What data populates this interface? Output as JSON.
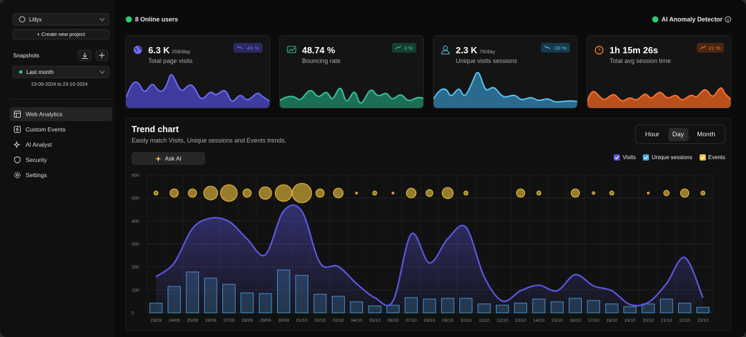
{
  "sidebar": {
    "project": "Litlyx",
    "create_project": "+ Create new project",
    "snapshots_title": "Snapshots",
    "snapshot": "Last month",
    "range": "23-09-2024 to 23-10-2024",
    "nav": [
      "Web Analytics",
      "Custom Events",
      "AI Analyst",
      "Security",
      "Settings"
    ]
  },
  "topbar": {
    "online": "8 Online users",
    "anomaly": "AI Anomaly Detector"
  },
  "cards": [
    {
      "value": "6.3 K",
      "per_day": "208/day",
      "label": "Total page visits",
      "trend": "-46 %"
    },
    {
      "value": "48.74 %",
      "label": "Bouncing rate",
      "trend": "3 %"
    },
    {
      "value": "2.3 K",
      "per_day": "75/day",
      "label": "Unique visits sessions",
      "trend": "-39 %"
    },
    {
      "value": "1h 15m 26s",
      "label": "Total avg session time",
      "trend": "21 %"
    }
  ],
  "chart_data": {
    "type": "combo",
    "title": "Trend chart",
    "subtitle": "Easily match Visits, Unique sessions and Events trends.",
    "ask_ai": "Ask AI",
    "granularity": [
      "Hour",
      "Day",
      "Month"
    ],
    "categories": [
      "23/09",
      "24/09",
      "25/09",
      "26/09",
      "27/09",
      "28/09",
      "29/09",
      "30/09",
      "01/10",
      "02/10",
      "03/10",
      "04/10",
      "05/10",
      "06/10",
      "07/10",
      "08/10",
      "09/10",
      "10/10",
      "11/10",
      "12/10",
      "13/10",
      "14/10",
      "15/10",
      "16/10",
      "17/10",
      "18/10",
      "19/10",
      "20/10",
      "21/10",
      "22/10",
      "23/10"
    ],
    "series": [
      {
        "name": "Visits",
        "type": "line",
        "color": "#5b58e0",
        "values": [
          157,
          217,
          367,
          412,
          398,
          322,
          253,
          443,
          443,
          217,
          202,
          127,
          66,
          51,
          343,
          217,
          322,
          373,
          157,
          51,
          96,
          120,
          96,
          166,
          117,
          96,
          36,
          45,
          127,
          241,
          66
        ]
      },
      {
        "name": "Unique sessions",
        "type": "bar",
        "color": "#4aa3df",
        "values": [
          42,
          115,
          178,
          151,
          124,
          87,
          84,
          187,
          163,
          81,
          72,
          48,
          30,
          33,
          66,
          60,
          63,
          63,
          39,
          33,
          42,
          60,
          48,
          63,
          54,
          39,
          27,
          39,
          60,
          42,
          24
        ]
      },
      {
        "name": "Events",
        "type": "bubble",
        "color": "#f2c43d",
        "values": [
          9,
          36,
          36,
          100,
          144,
          36,
          81,
          144,
          196,
          36,
          49,
          2,
          9,
          2,
          49,
          25,
          64,
          9,
          0,
          0,
          36,
          9,
          0,
          36,
          4,
          9,
          0,
          2,
          16,
          36,
          9
        ]
      }
    ],
    "ylim": [
      0,
      600
    ],
    "yticks": [
      0,
      100,
      200,
      300,
      400,
      500,
      600
    ],
    "grid": true
  }
}
